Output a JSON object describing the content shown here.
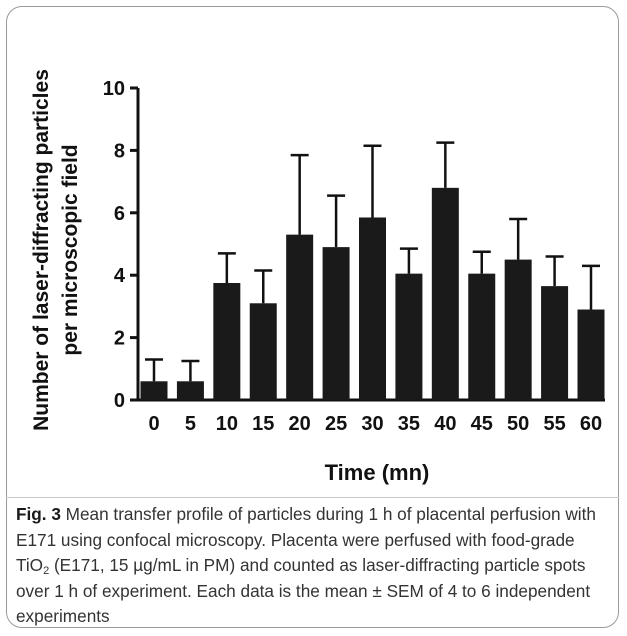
{
  "chart_data": {
    "type": "bar",
    "xlabel": "Time (mn)",
    "ylabel_lines": [
      "Number of laser-diffracting particles",
      "per microscopic field"
    ],
    "categories": [
      "0",
      "5",
      "10",
      "15",
      "20",
      "25",
      "30",
      "35",
      "40",
      "45",
      "50",
      "55",
      "60"
    ],
    "values": [
      0.6,
      0.6,
      3.75,
      3.1,
      5.3,
      4.9,
      5.85,
      4.05,
      6.8,
      4.05,
      4.5,
      3.65,
      2.9
    ],
    "errors": [
      0.7,
      0.65,
      0.95,
      1.05,
      2.55,
      1.65,
      2.3,
      0.8,
      1.45,
      0.7,
      1.3,
      0.95,
      1.4
    ],
    "ylim": [
      0,
      10
    ],
    "yticks": [
      0,
      2,
      4,
      6,
      8,
      10
    ],
    "bar_color": "#1a1a1a",
    "error_bars": "SEM, upward only",
    "grid": false,
    "legend": "none"
  },
  "caption": {
    "label": "Fig. 3",
    "text_before_sub": " Mean transfer profile of particles during 1 h of placental perfusion with E171 using confocal microscopy. Placenta were perfused with food-grade TiO",
    "subscript": "2",
    "text_after_sub": " (E171, 15 µg/mL in PM) and counted as laser-diffracting particle spots over 1 h of experiment. Each data is the mean ± SEM of 4 to 6 independent experiments"
  }
}
